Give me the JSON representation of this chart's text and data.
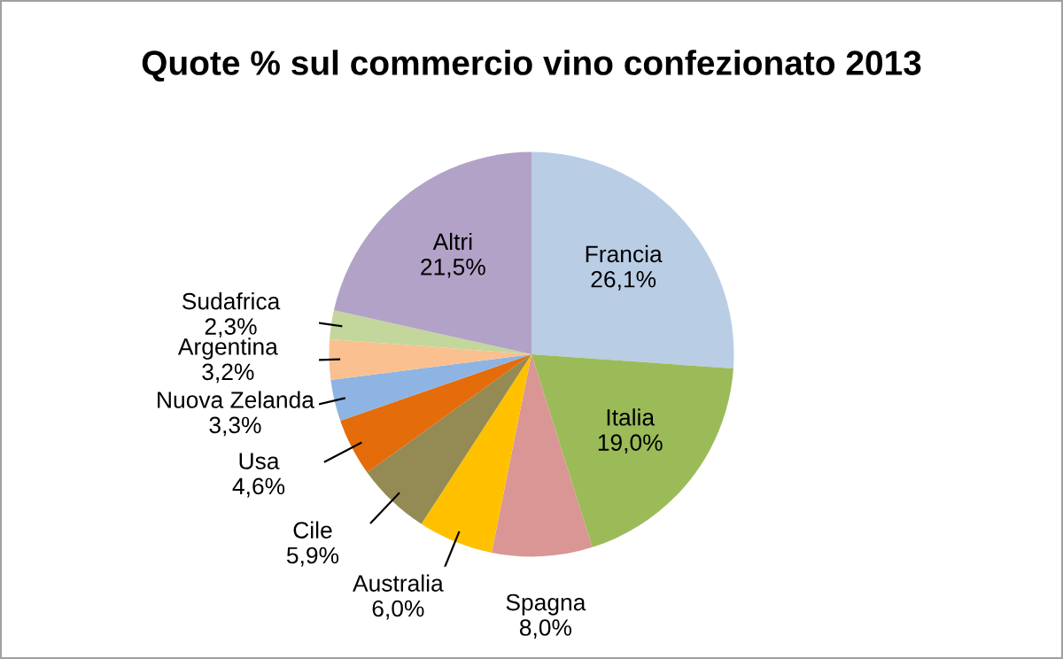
{
  "chart_data": {
    "type": "pie",
    "title": "Quote % sul commercio vino confezionato 2013",
    "categories": [
      "Francia",
      "Italia",
      "Spagna",
      "Australia",
      "Cile",
      "Usa",
      "Nuova Zelanda",
      "Argentina",
      "Sudafrica",
      "Altri"
    ],
    "values": [
      26.1,
      19.0,
      8.0,
      6.0,
      5.9,
      4.6,
      3.3,
      3.2,
      2.3,
      21.5
    ],
    "value_labels": [
      "26,1%",
      "19,0%",
      "8,0%",
      "6,0%",
      "5,9%",
      "4,6%",
      "3,3%",
      "3,2%",
      "2,3%",
      "21,5%"
    ],
    "colors": [
      "#b9cde5",
      "#9bbb59",
      "#d99694",
      "#ffc000",
      "#948a54",
      "#e46c0a",
      "#8eb4e3",
      "#fac090",
      "#c3d69b",
      "#b3a2c7"
    ],
    "legend": false
  }
}
